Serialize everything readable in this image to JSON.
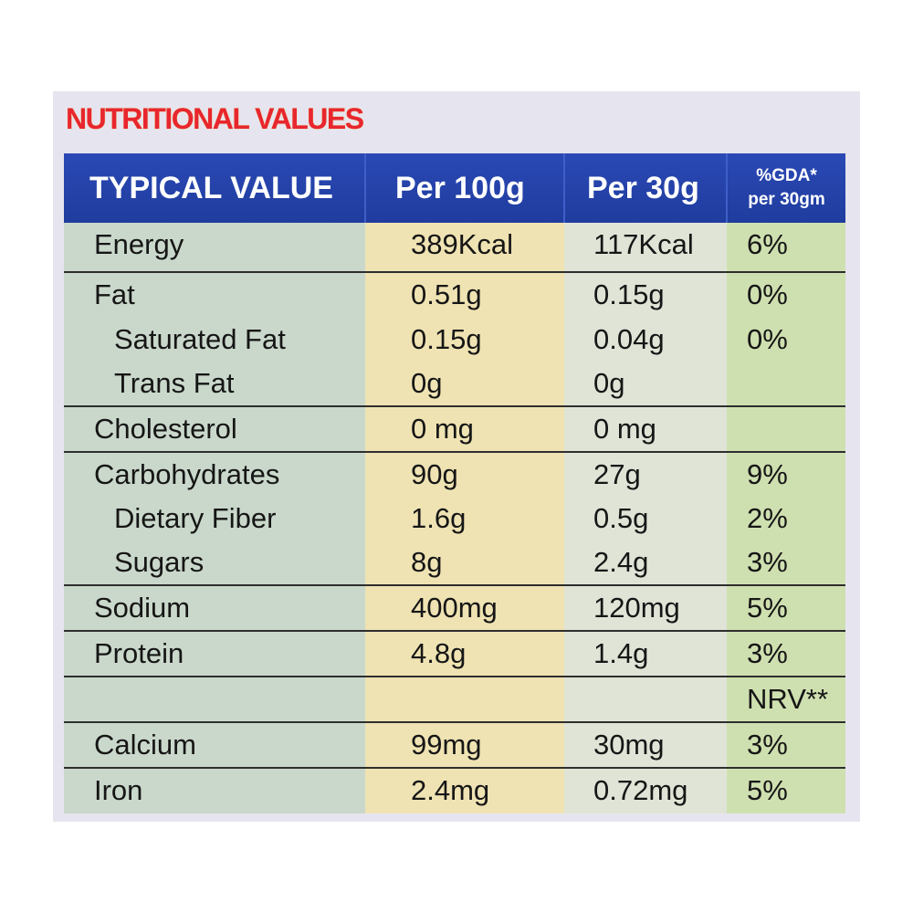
{
  "title": "NUTRITIONAL VALUES",
  "header": {
    "col1": "TYPICAL VALUE",
    "col2": "Per  100g",
    "col3": "Per  30g",
    "col4_line1": "%GDA*",
    "col4_line2": "per 30gm"
  },
  "rows": [
    {
      "name": "Energy",
      "per100": "389Kcal",
      "per30": "117Kcal",
      "gda": "6%"
    },
    {
      "name": "Fat",
      "per100": "0.51g",
      "per30": "0.15g",
      "gda": "0%"
    },
    {
      "name": "Saturated Fat",
      "per100": "0.15g",
      "per30": "0.04g",
      "gda": "0%"
    },
    {
      "name": "Trans Fat",
      "per100": "0g",
      "per30": "0g",
      "gda": ""
    },
    {
      "name": "Cholesterol",
      "per100": "0 mg",
      "per30": "0 mg",
      "gda": ""
    },
    {
      "name": "Carbohydrates",
      "per100": "90g",
      "per30": "27g",
      "gda": "9%"
    },
    {
      "name": "Dietary Fiber",
      "per100": "1.6g",
      "per30": "0.5g",
      "gda": "2%"
    },
    {
      "name": "Sugars",
      "per100": "8g",
      "per30": "2.4g",
      "gda": "3%"
    },
    {
      "name": "Sodium",
      "per100": "400mg",
      "per30": "120mg",
      "gda": "5%"
    },
    {
      "name": "Protein",
      "per100": "4.8g",
      "per30": "1.4g",
      "gda": "3%"
    },
    {
      "name": "",
      "per100": "",
      "per30": "",
      "gda": "NRV**"
    },
    {
      "name": "Calcium",
      "per100": "99mg",
      "per30": "30mg",
      "gda": "3%"
    },
    {
      "name": "Iron",
      "per100": "2.4mg",
      "per30": "0.72mg",
      "gda": "5%"
    }
  ]
}
